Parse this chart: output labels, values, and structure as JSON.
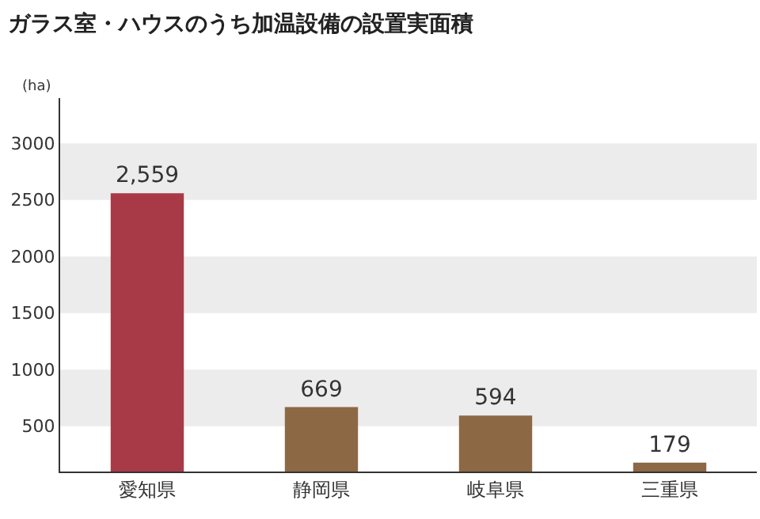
{
  "chart_data": {
    "type": "bar",
    "title": "ガラス室・ハウスのうち加温設備の設置実面積",
    "ylabel": "(ha)",
    "categories": [
      "愛知県",
      "静岡県",
      "岐阜県",
      "三重県"
    ],
    "values": [
      2559,
      669,
      594,
      179
    ],
    "colors": [
      "#a83a48",
      "#8d6845",
      "#8d6845",
      "#8d6845"
    ],
    "value_labels": [
      "2,559",
      "669",
      "594",
      "179"
    ],
    "ylim": [
      100,
      3400
    ],
    "yticks": [
      500,
      1000,
      1500,
      2000,
      2500,
      3000
    ],
    "bands": [
      {
        "axis": "y",
        "from": 500,
        "to": 1000,
        "color": "#ececec"
      },
      {
        "axis": "y",
        "from": 1500,
        "to": 2000,
        "color": "#ececec"
      },
      {
        "axis": "y",
        "from": 2500,
        "to": 3000,
        "color": "#ececec"
      }
    ],
    "grid": false
  }
}
